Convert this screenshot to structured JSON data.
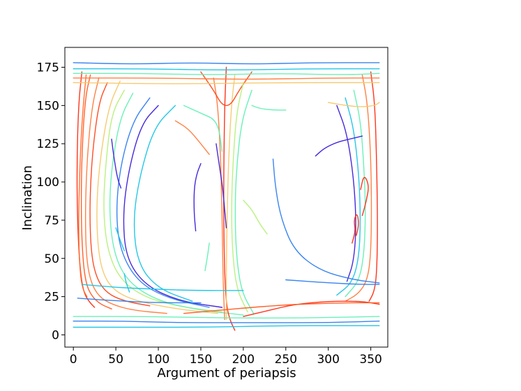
{
  "chart_data": {
    "type": "line",
    "title": "",
    "xlabel": "Argument of periapsis",
    "ylabel": "Inclination",
    "xlim": [
      -10,
      370
    ],
    "ylim": [
      -8,
      188
    ],
    "xticks": [
      0,
      50,
      100,
      150,
      200,
      250,
      300,
      350
    ],
    "yticks": [
      0,
      25,
      50,
      75,
      100,
      125,
      150,
      175
    ],
    "grid": false,
    "legend": "none",
    "colormap": [
      "#3a1fd8",
      "#2f7df0",
      "#19c4e6",
      "#62f0b4",
      "#b6f07a",
      "#f5c86a",
      "#ff7a3a",
      "#ff2a10"
    ],
    "series": [
      {
        "color": "#ff2a10",
        "x": [
          10,
          6,
          4,
          5,
          8,
          12,
          18,
          25
        ],
        "y": [
          172,
          150,
          110,
          70,
          42,
          28,
          22,
          18
        ]
      },
      {
        "color": "#ff5a20",
        "x": [
          20,
          14,
          10,
          9,
          11,
          15,
          22,
          32,
          45
        ],
        "y": [
          170,
          155,
          120,
          80,
          50,
          33,
          25,
          20,
          17
        ]
      },
      {
        "color": "#ff7a3a",
        "x": [
          30,
          22,
          16,
          14,
          15,
          20,
          30,
          45,
          70,
          110
        ],
        "y": [
          168,
          150,
          115,
          80,
          52,
          35,
          25,
          20,
          16,
          14
        ]
      },
      {
        "color": "#ff4418",
        "x": [
          40,
          30,
          22,
          19,
          21,
          28,
          40,
          60,
          90
        ],
        "y": [
          165,
          152,
          118,
          82,
          52,
          36,
          27,
          22,
          19
        ]
      },
      {
        "color": "#f5c86a",
        "x": [
          55,
          42,
          32,
          27,
          29,
          36,
          50,
          75,
          120,
          170
        ],
        "y": [
          166,
          150,
          118,
          85,
          55,
          38,
          28,
          22,
          17,
          14
        ]
      },
      {
        "color": "#ff6a2a",
        "x": [
          15,
          10,
          7,
          6,
          8,
          11,
          16
        ],
        "y": [
          170,
          140,
          100,
          65,
          40,
          30,
          25
        ]
      },
      {
        "color": "#b6f07a",
        "x": [
          60,
          45,
          38,
          35,
          40,
          55,
          85,
          130,
          175
        ],
        "y": [
          160,
          145,
          112,
          82,
          55,
          36,
          24,
          18,
          15
        ]
      },
      {
        "color": "#62f0b4",
        "x": [
          70,
          55,
          45,
          42,
          48,
          65,
          100,
          150,
          200
        ],
        "y": [
          158,
          142,
          110,
          80,
          52,
          34,
          22,
          16,
          13
        ]
      },
      {
        "color": "#2f7df0",
        "x": [
          90,
          70,
          55,
          50,
          55,
          75,
          110,
          160
        ],
        "y": [
          155,
          140,
          110,
          80,
          55,
          35,
          24,
          18
        ]
      },
      {
        "color": "#3a1fd8",
        "x": [
          100,
          80,
          65,
          58,
          62,
          85,
          125,
          175
        ],
        "y": [
          150,
          138,
          108,
          78,
          50,
          32,
          22,
          18
        ]
      },
      {
        "color": "#19c4e6",
        "x": [
          120,
          95,
          78,
          70,
          76,
          100,
          140
        ],
        "y": [
          150,
          136,
          104,
          74,
          46,
          30,
          22
        ]
      },
      {
        "color": "#ff2a10",
        "x": [
          180,
          178,
          177,
          177,
          178,
          180,
          184,
          190
        ],
        "y": [
          175,
          150,
          110,
          70,
          40,
          20,
          10,
          3
        ]
      },
      {
        "color": "#ff7a3a",
        "x": [
          165,
          170,
          173,
          175,
          176,
          178
        ],
        "y": [
          168,
          150,
          120,
          80,
          40,
          10
        ]
      },
      {
        "color": "#f5c86a",
        "x": [
          190,
          186,
          183,
          181,
          180,
          180
        ],
        "y": [
          170,
          150,
          120,
          80,
          40,
          10
        ]
      },
      {
        "color": "#ff4418",
        "x": [
          150,
          165,
          175,
          185,
          195,
          210
        ],
        "y": [
          172,
          160,
          150,
          150,
          160,
          172
        ]
      },
      {
        "color": "#b6f07a",
        "x": [
          200,
          192,
          188,
          186,
          187,
          192,
          205
        ],
        "y": [
          165,
          145,
          115,
          85,
          55,
          30,
          15
        ]
      },
      {
        "color": "#62f0b4",
        "x": [
          210,
          198,
          192,
          190,
          192,
          198,
          212
        ],
        "y": [
          160,
          140,
          110,
          80,
          50,
          28,
          14
        ]
      },
      {
        "color": "#3a1fd8",
        "x": [
          150,
          145,
          142,
          142,
          144
        ],
        "y": [
          112,
          105,
          95,
          80,
          68
        ]
      },
      {
        "color": "#3a1fd8",
        "x": [
          168,
          172,
          176,
          178,
          180
        ],
        "y": [
          125,
          110,
          95,
          82,
          70
        ]
      },
      {
        "color": "#ff2a10",
        "x": [
          350,
          355,
          357,
          358,
          357,
          354,
          348
        ],
        "y": [
          172,
          150,
          110,
          70,
          40,
          28,
          22
        ]
      },
      {
        "color": "#ff7a3a",
        "x": [
          340,
          346,
          350,
          351,
          350,
          346,
          336,
          320
        ],
        "y": [
          170,
          152,
          118,
          82,
          52,
          36,
          27,
          22
        ]
      },
      {
        "color": "#62f0b4",
        "x": [
          330,
          338,
          342,
          344,
          342,
          336,
          320
        ],
        "y": [
          160,
          140,
          110,
          80,
          52,
          35,
          25
        ]
      },
      {
        "color": "#19c4e6",
        "x": [
          320,
          330,
          336,
          338,
          336,
          328,
          310
        ],
        "y": [
          155,
          135,
          105,
          75,
          50,
          34,
          26
        ]
      },
      {
        "color": "#3a1fd8",
        "x": [
          310,
          322,
          330,
          333,
          330,
          322
        ],
        "y": [
          150,
          132,
          102,
          72,
          48,
          35
        ]
      },
      {
        "color": "#2f7df0",
        "x": [
          235,
          238,
          245,
          260,
          290,
          330,
          360
        ],
        "y": [
          115,
          95,
          75,
          55,
          42,
          36,
          34
        ]
      },
      {
        "color": "#3a1fd8",
        "x": [
          285,
          295,
          310,
          325,
          340
        ],
        "y": [
          117,
          122,
          126,
          128,
          130
        ]
      },
      {
        "color": "#ff2a10",
        "x": [
          200,
          230,
          260,
          300,
          340,
          360
        ],
        "y": [
          12,
          16,
          20,
          22,
          22,
          20
        ]
      },
      {
        "color": "#ff5a20",
        "x": [
          130,
          170,
          210,
          260,
          320,
          360
        ],
        "y": [
          14,
          16,
          18,
          20,
          21,
          21
        ]
      },
      {
        "color": "#2f7df0",
        "x": [
          0,
          60,
          120,
          180,
          240,
          300,
          360
        ],
        "y": [
          9,
          9,
          8,
          8,
          8,
          8,
          9
        ]
      },
      {
        "color": "#19c4e6",
        "x": [
          0,
          80,
          160,
          240,
          320,
          360
        ],
        "y": [
          5,
          5,
          5,
          6,
          6,
          6
        ]
      },
      {
        "color": "#62f0b4",
        "x": [
          0,
          90,
          180,
          270,
          360
        ],
        "y": [
          12,
          12,
          11,
          11,
          12
        ]
      },
      {
        "color": "#2f7df0",
        "x": [
          0,
          70,
          140,
          210,
          280,
          360
        ],
        "y": [
          178,
          177,
          178,
          177,
          178,
          178
        ]
      },
      {
        "color": "#19c4e6",
        "x": [
          0,
          90,
          180,
          270,
          360
        ],
        "y": [
          174,
          174,
          173,
          174,
          174
        ]
      },
      {
        "color": "#62f0b4",
        "x": [
          0,
          80,
          160,
          240,
          320,
          360
        ],
        "y": [
          171,
          171,
          170,
          171,
          170,
          171
        ]
      },
      {
        "color": "#ff7a3a",
        "x": [
          0,
          100,
          200,
          300,
          360
        ],
        "y": [
          168,
          168,
          167,
          168,
          168
        ]
      },
      {
        "color": "#f5c86a",
        "x": [
          0,
          120,
          240,
          360
        ],
        "y": [
          165,
          164,
          165,
          165
        ]
      },
      {
        "color": "#ff2a10",
        "x": [
          328,
          332,
          330,
          334,
          336,
          333
        ],
        "y": [
          60,
          68,
          75,
          80,
          72,
          65
        ]
      },
      {
        "color": "#ff2a10",
        "x": [
          340,
          345,
          348,
          342,
          338
        ],
        "y": [
          78,
          88,
          98,
          105,
          95
        ]
      },
      {
        "color": "#62f0b4",
        "x": [
          130,
          150,
          170,
          175
        ],
        "y": [
          150,
          145,
          140,
          120
        ]
      },
      {
        "color": "#ff7a3a",
        "x": [
          120,
          135,
          150,
          160
        ],
        "y": [
          140,
          135,
          125,
          118
        ]
      },
      {
        "color": "#19c4e6",
        "x": [
          50,
          55,
          60
        ],
        "y": [
          70,
          62,
          55
        ]
      },
      {
        "color": "#19c4e6",
        "x": [
          60,
          62,
          66
        ],
        "y": [
          40,
          34,
          28
        ]
      },
      {
        "color": "#b6f07a",
        "x": [
          200,
          210,
          220,
          228
        ],
        "y": [
          88,
          82,
          72,
          66
        ]
      },
      {
        "color": "#62f0b4",
        "x": [
          210,
          220,
          235,
          250
        ],
        "y": [
          150,
          148,
          147,
          147
        ]
      },
      {
        "color": "#62f0b4",
        "x": [
          160,
          158,
          155
        ],
        "y": [
          60,
          52,
          42
        ]
      },
      {
        "color": "#2f7df0",
        "x": [
          250,
          300,
          340,
          360
        ],
        "y": [
          36,
          34,
          33,
          33
        ]
      },
      {
        "color": "#19c4e6",
        "x": [
          10,
          50,
          90,
          140,
          200
        ],
        "y": [
          33,
          31,
          30,
          29,
          29
        ]
      },
      {
        "color": "#2f7df0",
        "x": [
          5,
          30,
          60,
          100,
          150
        ],
        "y": [
          24,
          23,
          22,
          21,
          21
        ]
      },
      {
        "color": "#f5c86a",
        "x": [
          300,
          320,
          340,
          355,
          360
        ],
        "y": [
          152,
          150,
          149,
          150,
          152
        ]
      },
      {
        "color": "#3a1fd8",
        "x": [
          45,
          48,
          52,
          56
        ],
        "y": [
          128,
          115,
          102,
          96
        ]
      }
    ]
  }
}
